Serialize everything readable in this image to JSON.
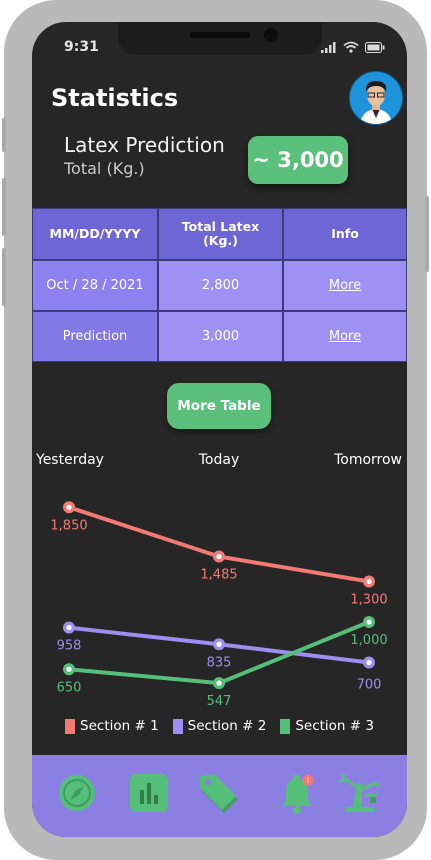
{
  "status_bar": {
    "time": "9:31"
  },
  "header": {
    "title": "Statistics"
  },
  "prediction": {
    "title": "Latex Prediction",
    "subtitle": "Total (Kg.)",
    "value": "~ 3,000"
  },
  "table": {
    "headers": [
      "MM/DD/YYYY",
      "Total Latex (Kg.)",
      "Info"
    ],
    "rows": [
      {
        "date": "Oct / 28 / 2021",
        "total": "2,800",
        "info": "More"
      },
      {
        "date": "Prediction",
        "total": "3,000",
        "info": "More"
      }
    ]
  },
  "more_table_button": "More Table",
  "chart_data": {
    "type": "line",
    "categories": [
      "Yesterday",
      "Today",
      "Tomorrow"
    ],
    "series": [
      {
        "name": "Section # 1",
        "values": [
          1850,
          1485,
          1300
        ],
        "labels": [
          "1,850",
          "1,485",
          "1,300"
        ],
        "color": "#f37a72"
      },
      {
        "name": "Section # 2",
        "values": [
          958,
          835,
          700
        ],
        "labels": [
          "958",
          "835",
          "700"
        ],
        "color": "#9c8ff0"
      },
      {
        "name": "Section # 3",
        "values": [
          650,
          547,
          1000
        ],
        "labels": [
          "650",
          "547",
          "1,000"
        ],
        "color": "#55bf7a"
      }
    ],
    "ylim": [
      200,
      2200
    ],
    "grid": false,
    "legend": "bottom"
  },
  "nav": {
    "items": [
      {
        "icon": "compass-icon",
        "label": "Explore"
      },
      {
        "icon": "bar-chart-icon",
        "label": "Statistics"
      },
      {
        "icon": "tags-icon",
        "label": "Tags"
      },
      {
        "icon": "bell-icon",
        "label": "Notifications"
      },
      {
        "icon": "tree-tap-icon",
        "label": "Tapping"
      }
    ],
    "color": "#55bf7a"
  }
}
